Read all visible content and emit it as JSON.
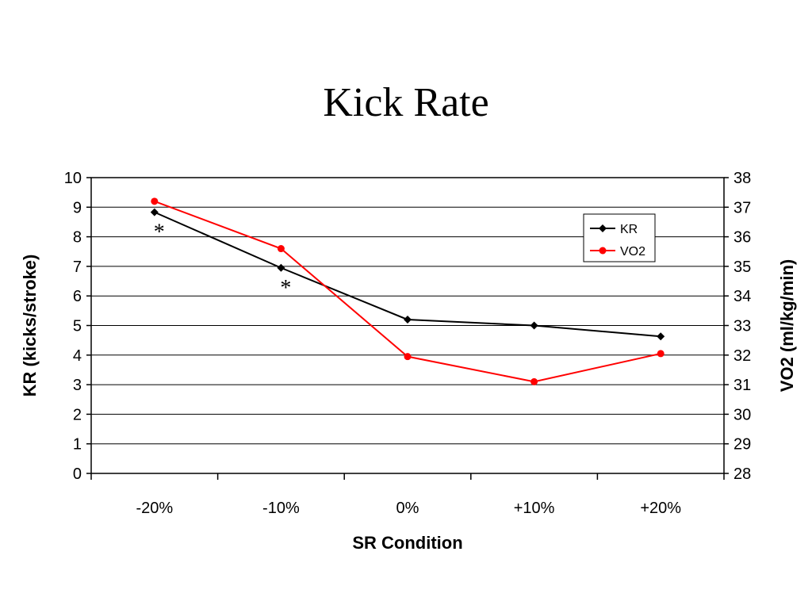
{
  "chart_data": {
    "type": "line",
    "title": "Kick Rate",
    "xlabel": "SR Condition",
    "ylabel": "KR (kicks/stroke)",
    "y2label": "VO2 (ml/kg/min)",
    "categories": [
      "-20%",
      "-10%",
      "0%",
      "+10%",
      "+20%"
    ],
    "ylim": [
      0,
      10
    ],
    "y2lim": [
      28,
      38
    ],
    "yticks": [
      "0",
      "1",
      "2",
      "3",
      "4",
      "5",
      "6",
      "7",
      "8",
      "9",
      "10"
    ],
    "y2ticks": [
      "28",
      "29",
      "30",
      "31",
      "32",
      "33",
      "34",
      "35",
      "36",
      "37",
      "38"
    ],
    "grid": true,
    "legend": "upper-right",
    "series": [
      {
        "name": "KR",
        "axis": "left",
        "color": "#000000",
        "marker": "diamond",
        "values": [
          8.83,
          6.95,
          5.2,
          5.0,
          4.63
        ]
      },
      {
        "name": "VO2",
        "axis": "right",
        "color": "#ff0000",
        "marker": "circle",
        "values": [
          37.2,
          35.6,
          31.95,
          31.1,
          32.05
        ]
      }
    ],
    "annotations": [
      {
        "text": "*",
        "category": "-20%"
      },
      {
        "text": "*",
        "category": "-10%"
      }
    ]
  }
}
